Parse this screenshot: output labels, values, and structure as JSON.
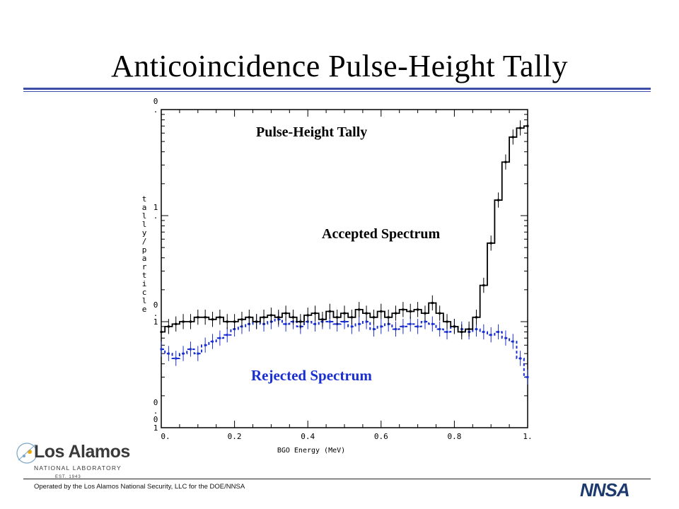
{
  "slide": {
    "title": "Anticoincidence Pulse-Height Tally",
    "footer": "Operated by the Los Alamos National Security, LLC for the DOE/NNSA"
  },
  "logo": {
    "main": "Los Alamos",
    "sub": "NATIONAL LABORATORY",
    "est": "EST. 1943",
    "nnsa": "NNSA"
  },
  "colors": {
    "accent": "#3b4fa8",
    "accepted": "#000000",
    "rejected": "#1a2fd0",
    "nnsa": "#1d3a6e"
  },
  "chart_data": {
    "type": "line",
    "title": "Pulse-Height Tally",
    "xlabel": "BGO Energy (MeV)",
    "ylabel": "tally/particle",
    "xlim": [
      0,
      1.0
    ],
    "ylim": [
      0.01,
      10
    ],
    "yscale": "log",
    "grid": false,
    "x_tick_labels": [
      "0.",
      "0.2",
      "0.4",
      "0.6",
      "0.8",
      "1."
    ],
    "y_tick_labels": [
      "0.01",
      "0.1",
      "1.",
      "10."
    ],
    "series": [
      {
        "name": "Accepted Spectrum",
        "color": "#000000",
        "x": [
          0.0,
          0.02,
          0.04,
          0.06,
          0.08,
          0.1,
          0.12,
          0.14,
          0.16,
          0.18,
          0.2,
          0.22,
          0.24,
          0.26,
          0.28,
          0.3,
          0.32,
          0.34,
          0.36,
          0.38,
          0.4,
          0.42,
          0.44,
          0.46,
          0.48,
          0.5,
          0.52,
          0.54,
          0.56,
          0.58,
          0.6,
          0.62,
          0.64,
          0.66,
          0.68,
          0.7,
          0.72,
          0.74,
          0.76,
          0.78,
          0.8,
          0.82,
          0.84,
          0.86,
          0.88,
          0.9,
          0.92,
          0.94,
          0.96,
          0.98,
          1.0
        ],
        "y": [
          0.08,
          0.09,
          0.095,
          0.1,
          0.1,
          0.11,
          0.11,
          0.105,
          0.11,
          0.1,
          0.1,
          0.105,
          0.11,
          0.1,
          0.11,
          0.115,
          0.11,
          0.12,
          0.11,
          0.1,
          0.115,
          0.12,
          0.105,
          0.125,
          0.11,
          0.12,
          0.11,
          0.13,
          0.12,
          0.11,
          0.125,
          0.11,
          0.12,
          0.13,
          0.125,
          0.13,
          0.12,
          0.15,
          0.12,
          0.1,
          0.09,
          0.08,
          0.085,
          0.11,
          0.22,
          0.55,
          1.4,
          3.2,
          5.5,
          6.7,
          7.0
        ]
      },
      {
        "name": "Rejected Spectrum",
        "color": "#1a2fd0",
        "x": [
          0.0,
          0.02,
          0.04,
          0.06,
          0.08,
          0.1,
          0.12,
          0.14,
          0.16,
          0.18,
          0.2,
          0.22,
          0.24,
          0.26,
          0.28,
          0.3,
          0.32,
          0.34,
          0.36,
          0.38,
          0.4,
          0.42,
          0.44,
          0.46,
          0.48,
          0.5,
          0.52,
          0.54,
          0.56,
          0.58,
          0.6,
          0.62,
          0.64,
          0.66,
          0.68,
          0.7,
          0.72,
          0.74,
          0.76,
          0.78,
          0.8,
          0.82,
          0.84,
          0.86,
          0.88,
          0.9,
          0.92,
          0.94,
          0.96,
          0.98,
          1.0
        ],
        "y": [
          0.055,
          0.05,
          0.045,
          0.05,
          0.055,
          0.05,
          0.06,
          0.065,
          0.07,
          0.075,
          0.085,
          0.09,
          0.095,
          0.1,
          0.095,
          0.1,
          0.105,
          0.095,
          0.1,
          0.09,
          0.1,
          0.095,
          0.1,
          0.1,
          0.095,
          0.1,
          0.09,
          0.095,
          0.1,
          0.085,
          0.09,
          0.095,
          0.085,
          0.09,
          0.095,
          0.09,
          0.1,
          0.095,
          0.085,
          0.08,
          0.09,
          0.085,
          0.08,
          0.085,
          0.08,
          0.075,
          0.08,
          0.07,
          0.065,
          0.045,
          0.03
        ]
      }
    ],
    "annotations": [
      "Pulse-Height Tally",
      "Accepted Spectrum",
      "Rejected Spectrum"
    ]
  }
}
